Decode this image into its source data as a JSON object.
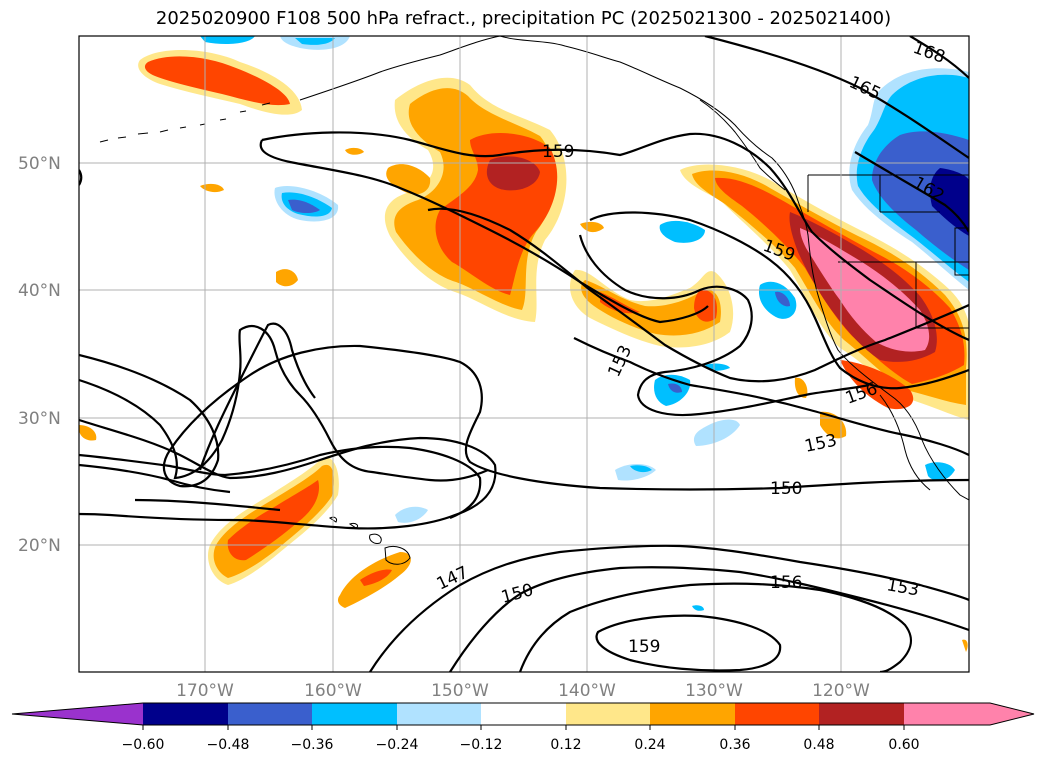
{
  "title": "2025020900 F108 500 hPa refract., precipitation PC (2025021300 - 2025021400)",
  "colors": {
    "c_n072": "#9a32cd",
    "c_n060": "#00008b",
    "c_n048": "#3a5fcd",
    "c_n036": "#00bfff",
    "c_n024": "#b0e2ff",
    "c_zero": "#ffffff",
    "c_p012": "#ffe78a",
    "c_p024": "#ffa500",
    "c_p036": "#ff4500",
    "c_p048": "#b22222",
    "c_p060": "#ff82ab",
    "grid": "#b0b0b0",
    "axis_label": "#808080"
  },
  "map": {
    "lat_labels": [
      "50°N",
      "40°N",
      "30°N",
      "20°N"
    ],
    "lon_labels": [
      "170°W",
      "160°W",
      "150°W",
      "140°W",
      "130°W",
      "120°W"
    ],
    "contour_labels": [
      "168",
      "165",
      "162",
      "159",
      "159",
      "153",
      "156",
      "153",
      "150",
      "147",
      "150",
      "156",
      "153",
      "159"
    ]
  },
  "colorbar": {
    "ticks": [
      "−0.60",
      "−0.48",
      "−0.36",
      "−0.24",
      "−0.12",
      "0.12",
      "0.24",
      "0.36",
      "0.48",
      "0.60"
    ]
  }
}
